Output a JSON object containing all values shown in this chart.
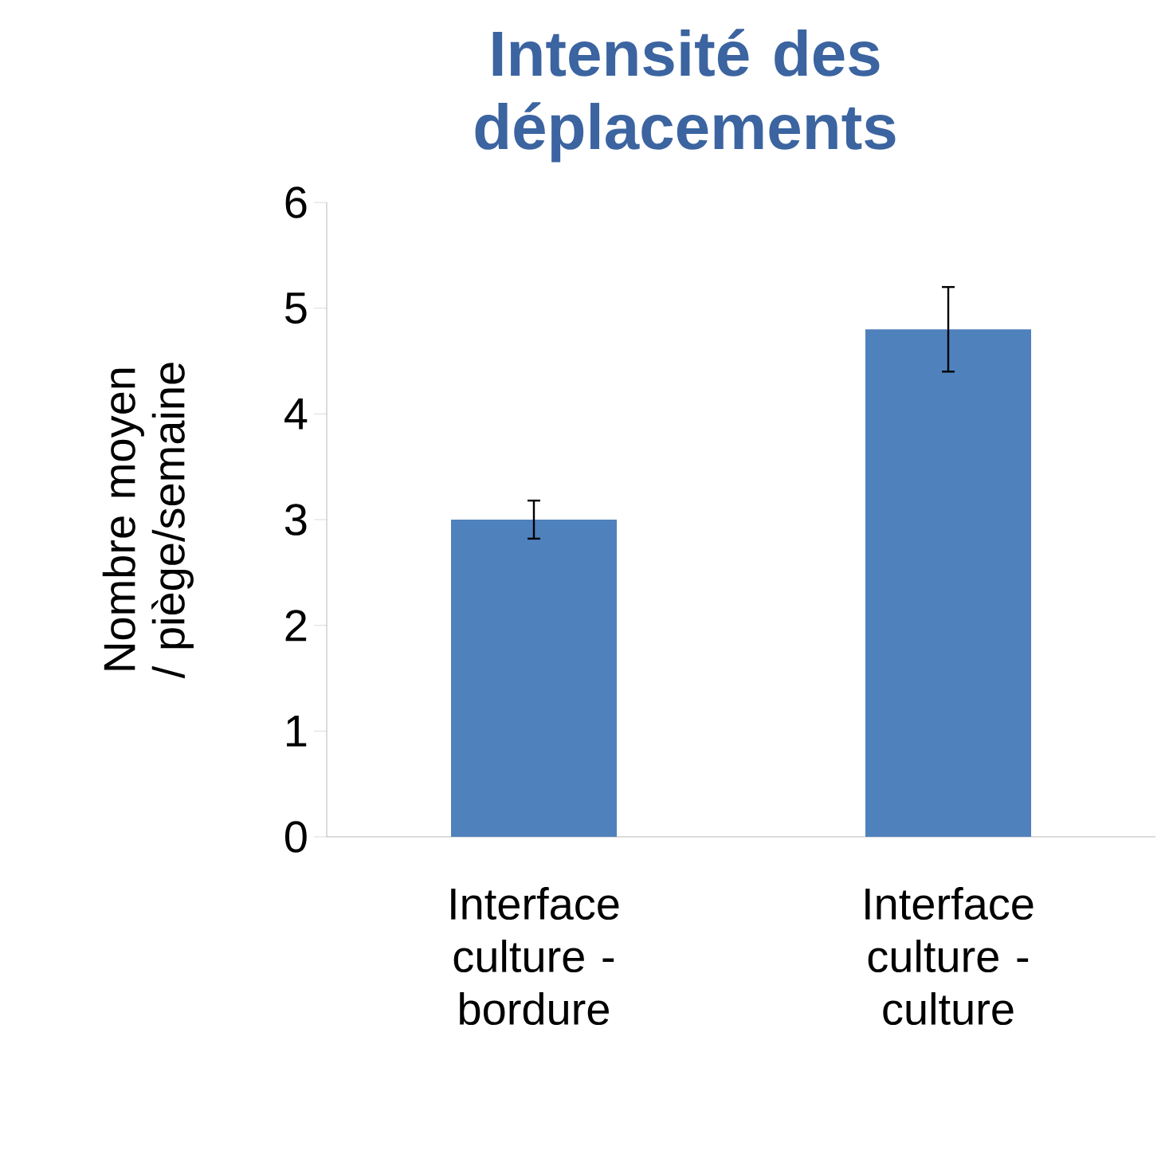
{
  "chart_data": {
    "type": "bar",
    "title": "Intensité des déplacements",
    "ylabel": "Nombre moyen / piège/semaine",
    "categories": [
      "Interface culture - bordure",
      "Interface culture - culture"
    ],
    "values": [
      3.0,
      4.8
    ],
    "errors": [
      0.18,
      0.4
    ],
    "color": "#4f81bd",
    "ylim": [
      0,
      6
    ],
    "yticks": [
      0,
      1,
      2,
      3,
      4,
      5,
      6
    ],
    "grid": false
  }
}
